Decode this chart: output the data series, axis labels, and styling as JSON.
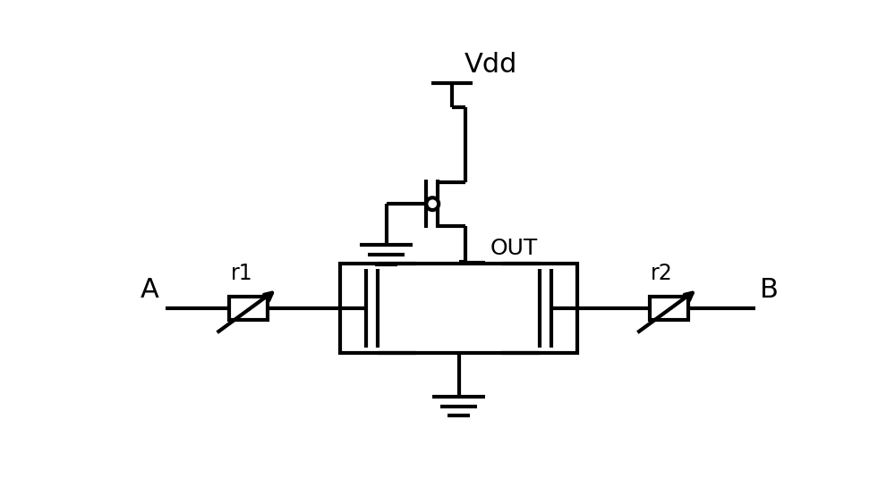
{
  "bg": "#ffffff",
  "lc": "#000000",
  "lw": 3.0,
  "vdd_label": "Vdd",
  "out_label": "OUT",
  "r1_label": "r1",
  "r2_label": "r2",
  "a_label": "A",
  "b_label": "B",
  "fig_w": 10.0,
  "fig_h": 5.54,
  "out_color": "#000000"
}
